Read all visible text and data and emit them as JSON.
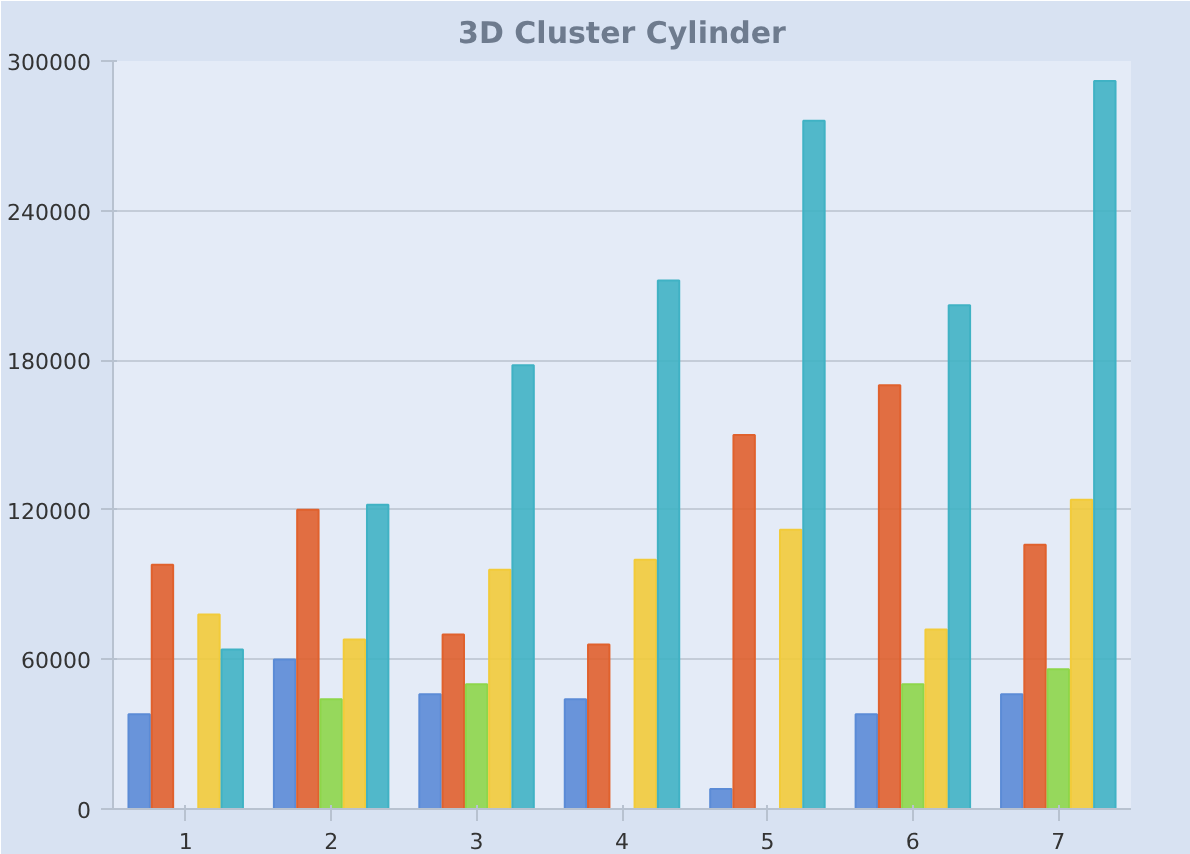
{
  "chart_data": {
    "type": "bar",
    "title": "3D Cluster Cylinder",
    "categories": [
      "1",
      "2",
      "3",
      "4",
      "5",
      "6",
      "7"
    ],
    "series": [
      {
        "color": "#5b8bd6",
        "values": [
          38000,
          60000,
          46000,
          44000,
          8000,
          38000,
          46000
        ]
      },
      {
        "color": "#e0612d",
        "values": [
          98000,
          120000,
          70000,
          66000,
          150000,
          170000,
          106000
        ]
      },
      {
        "color": "#8dd64a",
        "values": [
          null,
          44000,
          50000,
          null,
          null,
          50000,
          56000
        ]
      },
      {
        "color": "#f2cb3a",
        "values": [
          78000,
          68000,
          96000,
          100000,
          112000,
          72000,
          124000
        ]
      },
      {
        "color": "#40b2c4",
        "values": [
          64000,
          122000,
          178000,
          212000,
          276000,
          202000,
          292000
        ]
      }
    ],
    "ylim": [
      0,
      300000
    ],
    "yticks": [
      0,
      60000,
      120000,
      180000,
      240000,
      300000
    ],
    "grid": "y"
  }
}
